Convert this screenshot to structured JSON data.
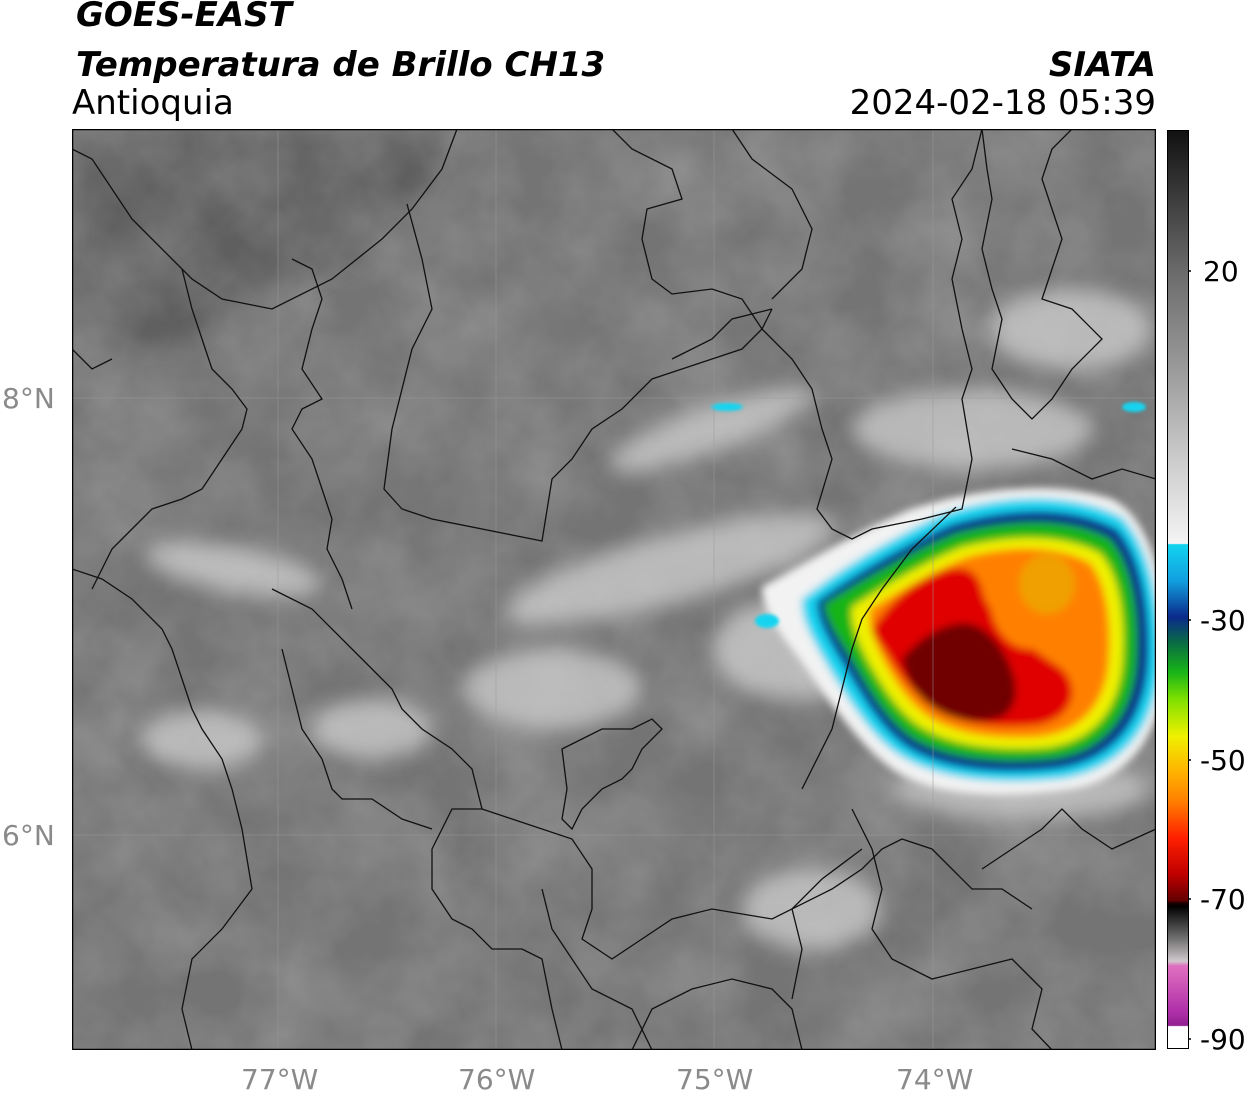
{
  "header": {
    "satellite": "GOES-EAST",
    "product": "Temperatura de Brillo CH13",
    "region": "Antioquia",
    "agency": "SIATA",
    "datetime": "2024-02-18 05:39"
  },
  "map": {
    "lon_labels": [
      "77°W",
      "76°W",
      "75°W",
      "74°W"
    ],
    "lat_labels": [
      "8°N",
      "6°N"
    ]
  },
  "colorbar": {
    "tick_labels": [
      "20",
      "-30",
      "-50",
      "-70",
      "-90"
    ],
    "colors": {
      "warm_gray": "#7a7a7a",
      "cold_white": "#f2f2f2",
      "cyan": "#12d4f0",
      "blue": "#0a2a8a",
      "green": "#18b418",
      "yellow": "#f0f000",
      "orange": "#ff8000",
      "red": "#e00000",
      "dark_red": "#700000",
      "black": "#000000",
      "magenta": "#c020c0"
    }
  }
}
